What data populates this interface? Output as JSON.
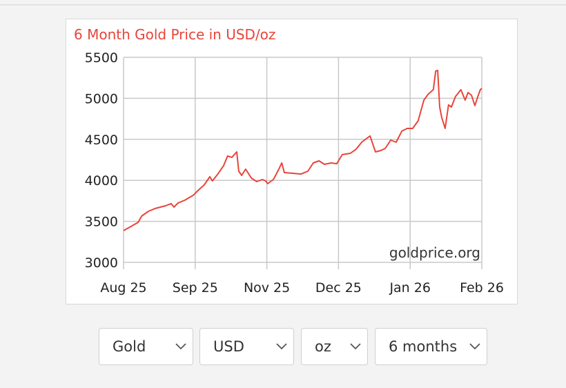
{
  "chart_data": {
    "type": "line",
    "title": "6 Month Gold Price in USD/oz",
    "watermark": "goldprice.org",
    "color": "#e8443a",
    "x": [
      0,
      2.6,
      5.1,
      6.3,
      8.7,
      11.1,
      14.7,
      16.6,
      17.6,
      19.0,
      21.4,
      24.3,
      26.2,
      28.1,
      30.1,
      31.0,
      32.9,
      34.9,
      36.3,
      37.8,
      39.5,
      40.2,
      41.2,
      42.6,
      44.6,
      46.5,
      48.4,
      49.6,
      50.3,
      52.3,
      54.2,
      55.2,
      56.1,
      59.0,
      61.9,
      64.3,
      66.2,
      68.2,
      70.1,
      72.5,
      74.4,
      76.3,
      79.2,
      81.2,
      83.1,
      85.0,
      86.0,
      87.9,
      89.8,
      91.3,
      93.2,
      95.1,
      97.1,
      99.0,
      100.9,
      102.8,
      104.8,
      106.2,
      108.1,
      108.9,
      109.6,
      110.3,
      111.0,
      112.2,
      113.4,
      114.4,
      115.8,
      117.7,
      119.2,
      120.2,
      121.4,
      122.6,
      123.6,
      124.5,
      125
    ],
    "values": [
      3387,
      3438,
      3488,
      3564,
      3623,
      3657,
      3690,
      3716,
      3673,
      3724,
      3758,
      3817,
      3884,
      3943,
      4044,
      3993,
      4077,
      4178,
      4296,
      4280,
      4347,
      4111,
      4061,
      4136,
      4027,
      3985,
      4010,
      3993,
      3960,
      4010,
      4136,
      4212,
      4094,
      4086,
      4077,
      4111,
      4212,
      4237,
      4195,
      4212,
      4203,
      4313,
      4330,
      4381,
      4465,
      4515,
      4541,
      4347,
      4364,
      4389,
      4490,
      4465,
      4600,
      4633,
      4633,
      4726,
      4978,
      5046,
      5105,
      5332,
      5340,
      4894,
      4768,
      4633,
      4919,
      4894,
      5020,
      5105,
      4978,
      5071,
      5037,
      4911,
      5020,
      5105,
      5121
    ],
    "xlim": [
      0,
      125
    ],
    "xticks": [
      {
        "value": 0,
        "label": "Aug 25"
      },
      {
        "value": 25,
        "label": "Sep 25"
      },
      {
        "value": 50,
        "label": "Nov 25"
      },
      {
        "value": 75,
        "label": "Dec 25"
      },
      {
        "value": 100,
        "label": "Jan 26"
      },
      {
        "value": 125,
        "label": "Feb 26"
      }
    ],
    "ylim": [
      3000,
      5500
    ],
    "yticks": [
      3000,
      3500,
      4000,
      4500,
      5000,
      5500
    ],
    "grid": true
  },
  "controls": [
    "Gold",
    "USD",
    "oz",
    "6 months"
  ]
}
